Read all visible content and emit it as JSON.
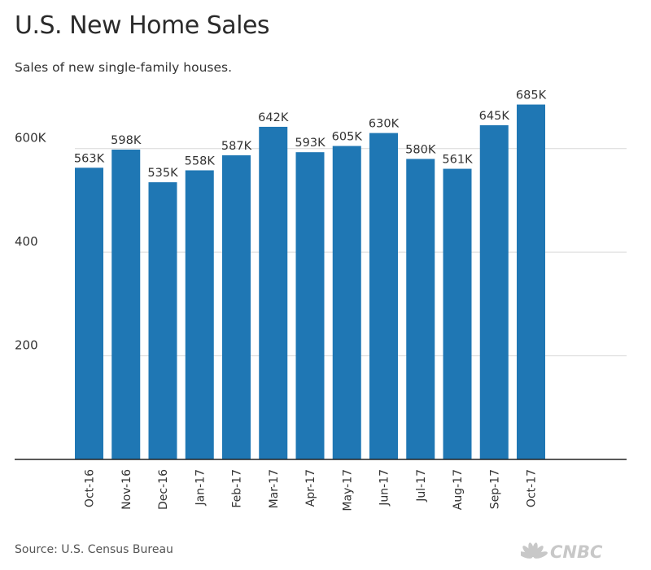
{
  "header": {
    "title": "U.S. New Home Sales",
    "subtitle": "Sales of new single-family houses."
  },
  "footer": {
    "source": "Source: U.S. Census Bureau",
    "brand": "CNBC"
  },
  "colors": {
    "bar": "#1f77b4",
    "grid": "#d9d9d9",
    "axis": "#222222",
    "text": "#333333",
    "brand": "#c8c8c8"
  },
  "chart_data": {
    "type": "bar",
    "title": "U.S. New Home Sales",
    "subtitle": "Sales of new single-family houses.",
    "xlabel": "",
    "ylabel": "",
    "categories": [
      "Oct-16",
      "Nov-16",
      "Dec-16",
      "Jan-17",
      "Feb-17",
      "Mar-17",
      "Apr-17",
      "May-17",
      "Jun-17",
      "Jul-17",
      "Aug-17",
      "Sep-17",
      "Oct-17"
    ],
    "values": [
      563,
      598,
      535,
      558,
      587,
      642,
      593,
      605,
      630,
      580,
      561,
      645,
      685
    ],
    "data_labels": [
      "563K",
      "598K",
      "535K",
      "558K",
      "587K",
      "642K",
      "593K",
      "605K",
      "630K",
      "580K",
      "561K",
      "645K",
      "685K"
    ],
    "yticks": [
      200,
      400,
      600
    ],
    "ytick_labels": [
      "200",
      "400",
      "600K"
    ],
    "ylim": [
      0,
      700
    ],
    "grid": true,
    "legend": "none"
  }
}
